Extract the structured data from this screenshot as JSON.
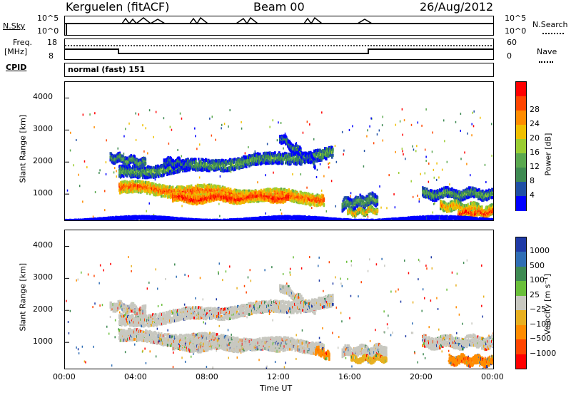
{
  "header": {
    "station": "Kerguelen (fitACF)",
    "beam": "Beam 00",
    "date": "26/Aug/2012"
  },
  "top_panels": {
    "nsky_label": "N.Sky",
    "nsky_ticks": [
      "10^5",
      "10^0"
    ],
    "nsearch_label": "N.Search",
    "nsearch_ticks": [
      "10^5",
      "10^0"
    ],
    "freq_label_1": "Freq.",
    "freq_label_2": "[MHz]",
    "freq_ticks": [
      "18",
      "8"
    ],
    "nave_label": "Nave",
    "nave_ticks": [
      "60",
      "0"
    ],
    "cpid_label": "CPID",
    "cpid_value": "normal (fast) 151"
  },
  "colors": {
    "power": [
      "#0000ff",
      "#1f4fa5",
      "#3e8a52",
      "#5aa84f",
      "#9acd32",
      "#f0c000",
      "#ff8c00",
      "#ff4500",
      "#ff0000"
    ],
    "velocity": [
      "#1f3aa6",
      "#2f6eb5",
      "#3e8a52",
      "#6abf3a",
      "#c8c8c0",
      "#e8b020",
      "#ff8c00",
      "#ff4500",
      "#ff0000"
    ],
    "ground": "#c8c8c0"
  },
  "chart_data": [
    {
      "type": "heatmap",
      "name_hint": "power",
      "ylabel": "Slant Range [km]",
      "xlabel": "",
      "xlim": [
        0,
        24
      ],
      "ylim": [
        180,
        4500
      ],
      "xticks": [
        "00:00",
        "04:00",
        "08:00",
        "12:00",
        "16:00",
        "20:00",
        "00:00"
      ],
      "yticks": [
        1000,
        2000,
        3000,
        4000
      ],
      "colorbar_label": "Power [dB]",
      "colorbar_ticks": [
        "4",
        "8",
        "12",
        "16",
        "20",
        "24",
        "28"
      ],
      "regions": [
        {
          "x0": 3.0,
          "x1": 14.5,
          "yc_start": 1250,
          "yc_end": 900,
          "width": 350,
          "level": 7
        },
        {
          "x0": 6.0,
          "x1": 12.5,
          "yc_start": 900,
          "yc_end": 950,
          "width": 250,
          "level": 8
        },
        {
          "x0": 3.0,
          "x1": 15.0,
          "yc_start": 1700,
          "yc_end": 2300,
          "width": 350,
          "level": 3
        },
        {
          "x0": 2.5,
          "x1": 4.5,
          "yc_start": 2200,
          "yc_end": 2000,
          "width": 250,
          "level": 3
        },
        {
          "x0": 5.5,
          "x1": 7.0,
          "yc_start": 2050,
          "yc_end": 1950,
          "width": 250,
          "level": 2
        },
        {
          "x0": 12.0,
          "x1": 14.0,
          "yc_start": 2800,
          "yc_end": 2000,
          "width": 250,
          "level": 2
        },
        {
          "x0": 15.5,
          "x1": 17.5,
          "yc_start": 700,
          "yc_end": 900,
          "width": 350,
          "level": 3
        },
        {
          "x0": 15.8,
          "x1": 17.5,
          "yc_start": 450,
          "yc_end": 550,
          "width": 150,
          "level": 6
        },
        {
          "x0": 20.0,
          "x1": 24.0,
          "yc_start": 1050,
          "yc_end": 1050,
          "width": 300,
          "level": 3
        },
        {
          "x0": 21.0,
          "x1": 24.0,
          "yc_start": 700,
          "yc_end": 500,
          "width": 300,
          "level": 6
        },
        {
          "x0": 22.0,
          "x1": 24.0,
          "yc_start": 450,
          "yc_end": 450,
          "width": 200,
          "level": 8
        },
        {
          "x0": 0.0,
          "x1": 24.0,
          "yc_start": 250,
          "yc_end": 250,
          "width": 80,
          "level": 0
        }
      ]
    },
    {
      "type": "heatmap",
      "name_hint": "velocity",
      "ylabel": "Slant Range [km]",
      "xlabel": "Time UT",
      "xlim": [
        0,
        24
      ],
      "ylim": [
        180,
        4500
      ],
      "xticks": [
        "00:00",
        "04:00",
        "08:00",
        "12:00",
        "16:00",
        "20:00",
        "00:00"
      ],
      "yticks": [
        1000,
        2000,
        3000,
        4000
      ],
      "colorbar_label": "Velocity [m s⁻¹]",
      "colorbar_ticks": [
        "1000",
        "500",
        "100",
        "25",
        "−25",
        "−100",
        "−500",
        "−1000"
      ],
      "regions": [
        {
          "x0": 3.0,
          "x1": 14.5,
          "yc_start": 1250,
          "yc_end": 900,
          "width": 350,
          "level": 4
        },
        {
          "x0": 6.0,
          "x1": 12.5,
          "yc_start": 900,
          "yc_end": 950,
          "width": 250,
          "level": 4
        },
        {
          "x0": 3.0,
          "x1": 15.0,
          "yc_start": 1700,
          "yc_end": 2300,
          "width": 350,
          "level": 4
        },
        {
          "x0": 2.5,
          "x1": 4.5,
          "yc_start": 2200,
          "yc_end": 2000,
          "width": 250,
          "level": 4
        },
        {
          "x0": 12.0,
          "x1": 14.0,
          "yc_start": 2800,
          "yc_end": 2000,
          "width": 250,
          "level": 4
        },
        {
          "x0": 14.0,
          "x1": 14.8,
          "yc_start": 800,
          "yc_end": 600,
          "width": 200,
          "level": 6
        },
        {
          "x0": 15.5,
          "x1": 18.0,
          "yc_start": 750,
          "yc_end": 800,
          "width": 300,
          "level": 4
        },
        {
          "x0": 16.0,
          "x1": 18.0,
          "yc_start": 500,
          "yc_end": 550,
          "width": 150,
          "level": 5
        },
        {
          "x0": 20.0,
          "x1": 24.0,
          "yc_start": 1050,
          "yc_end": 1050,
          "width": 350,
          "level": 4
        },
        {
          "x0": 21.5,
          "x1": 24.0,
          "yc_start": 500,
          "yc_end": 450,
          "width": 250,
          "level": 6
        }
      ]
    }
  ]
}
